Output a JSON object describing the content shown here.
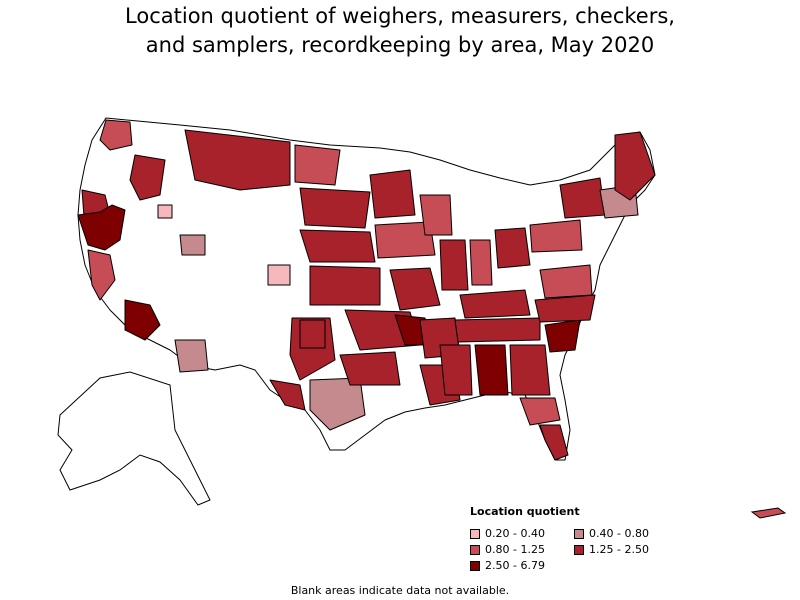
{
  "title": {
    "line1": "Location quotient of weighers, measurers, checkers,",
    "line2": "and samplers, recordkeeping by area, May 2020"
  },
  "legend": {
    "title": "Location quotient",
    "items": [
      {
        "label": "0.20 - 0.40",
        "color": "#f6b8bd"
      },
      {
        "label": "0.40 - 0.80",
        "color": "#c48a8d"
      },
      {
        "label": "0.80 - 1.25",
        "color": "#c64c55"
      },
      {
        "label": "1.25 - 2.50",
        "color": "#a7222a"
      },
      {
        "label": "2.50 - 6.79",
        "color": "#7f0000"
      }
    ]
  },
  "footnote": "Blank areas indicate data not available.",
  "colors": {
    "blank": "#ffffff",
    "border": "#000000"
  }
}
